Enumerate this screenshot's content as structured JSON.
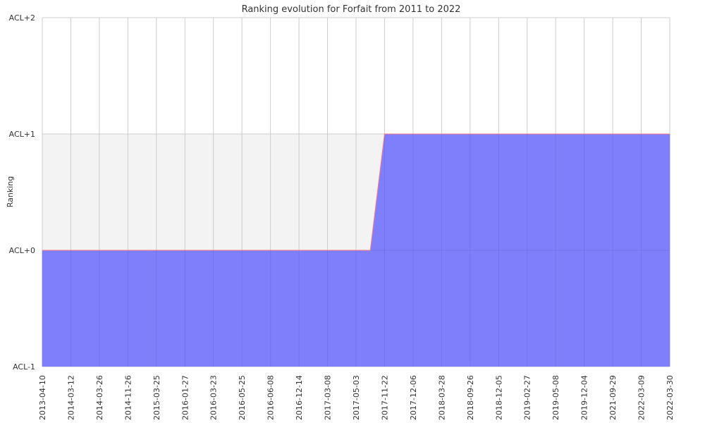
{
  "chart_data": {
    "type": "area",
    "title": "Ranking evolution for Forfait  from 2011 to 2022",
    "xlabel": "",
    "ylabel": "Ranking",
    "x": [
      "2013-04-10",
      "2014-03-12",
      "2014-03-26",
      "2014-11-26",
      "2015-03-25",
      "2016-01-27",
      "2016-03-23",
      "2016-05-25",
      "2016-06-08",
      "2016-12-14",
      "2017-03-08",
      "2017-05-03",
      "2017-11-22",
      "2017-12-06",
      "2018-03-28",
      "2018-09-26",
      "2018-12-05",
      "2019-02-27",
      "2019-05-08",
      "2019-12-04",
      "2021-09-29",
      "2022-03-09",
      "2022-03-30"
    ],
    "yticks": [
      "ACL-1",
      "ACL+0",
      "ACL+1",
      "ACL+2"
    ],
    "ylim": [
      -1,
      2
    ],
    "series": [
      {
        "values": [
          0,
          0,
          0,
          0,
          0,
          0,
          0,
          0,
          0,
          0,
          0,
          0,
          1,
          1,
          1,
          1,
          1,
          1,
          1,
          1,
          1,
          1,
          1
        ],
        "step_at": 11.5
      }
    ],
    "grid": true,
    "colors": {
      "fill": "#7b7bfb",
      "line": "#ff7a7a",
      "band": "#f3f3f3",
      "grid": "#cccccc",
      "text": "#333333"
    }
  }
}
